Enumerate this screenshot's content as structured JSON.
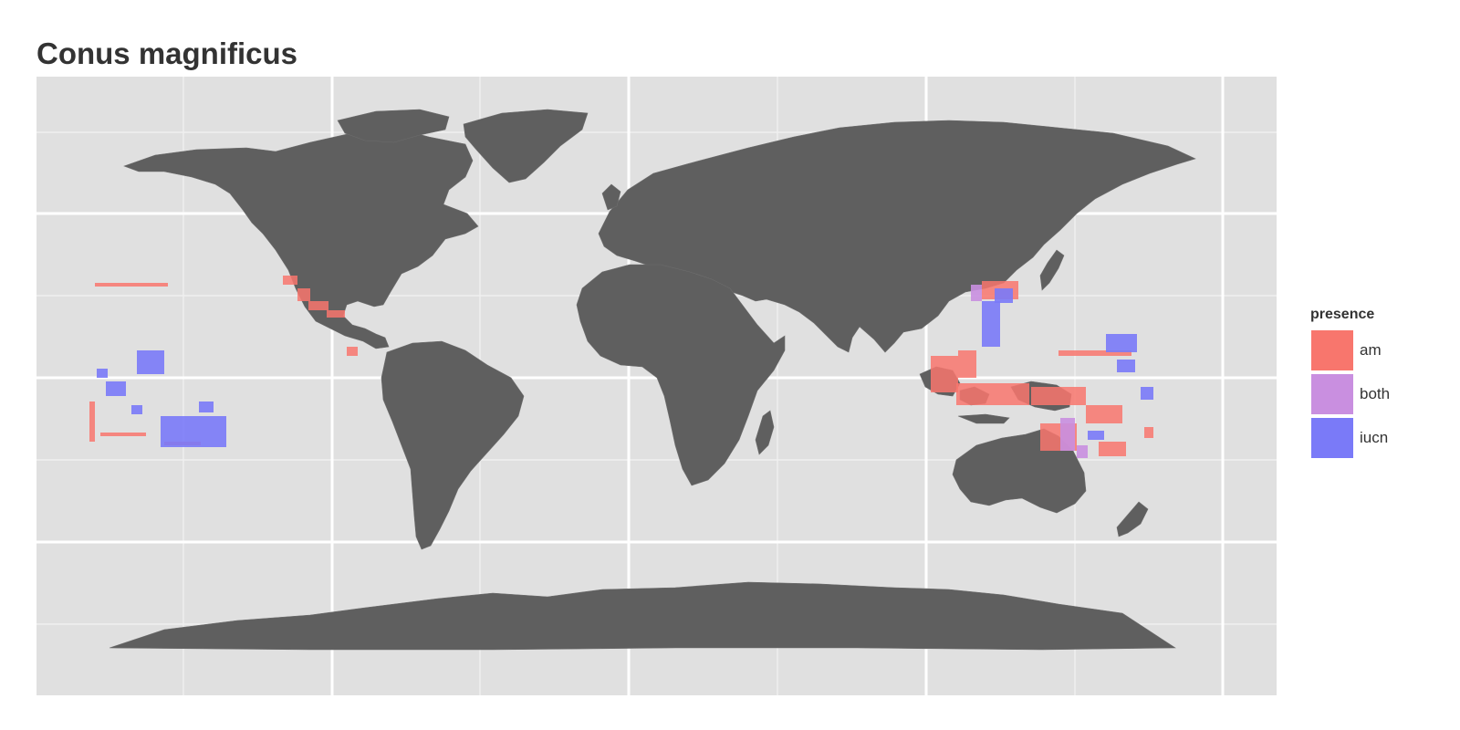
{
  "title": "Conus magnificus",
  "legend": {
    "title": "presence",
    "items": [
      {
        "label": "am",
        "color": "#F8766D"
      },
      {
        "label": "both",
        "color": "#C98FE0"
      },
      {
        "label": "iucn",
        "color": "#7A7AF8"
      }
    ]
  },
  "colors": {
    "panel_background": "#E0E0E0",
    "land": "#5F5F5F",
    "grid_major": "#FFFFFF",
    "grid_minor": "#F0F0F0"
  },
  "map": {
    "projection": "equirectangular",
    "grid": true,
    "legend_position": "right"
  }
}
